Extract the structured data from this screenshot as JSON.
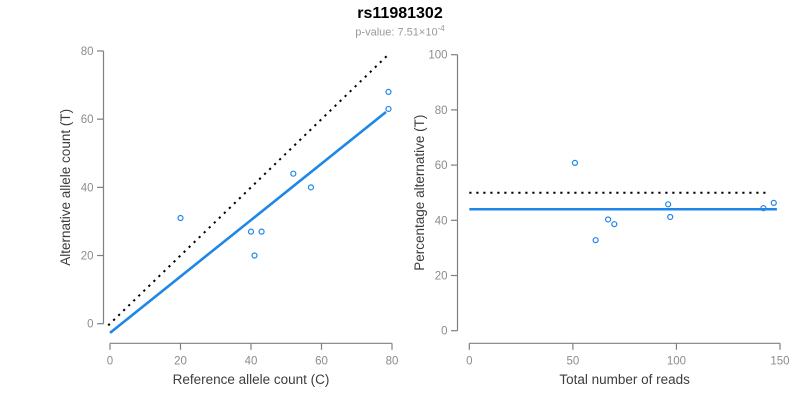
{
  "header": {
    "title": "rs11981302",
    "pvalue_prefix": "p-value: 7.51×10",
    "pvalue_exponent": "-4"
  },
  "colors": {
    "point": "#1e87e8",
    "fit_line": "#1e87e8",
    "dotted_line": "#000000",
    "axis": "#808080",
    "tick_label": "#8c8c8c",
    "axis_title": "#3d3d3d",
    "title": "#000000",
    "subtitle": "#999999"
  },
  "chart_data": [
    {
      "type": "scatter",
      "panel": "allele-counts",
      "xlabel": "Reference allele count (C)",
      "ylabel": "Alternative allele count (T)",
      "xlim": [
        0,
        80
      ],
      "ylim": [
        0,
        80
      ],
      "xticks": [
        0,
        20,
        40,
        60,
        80
      ],
      "yticks": [
        0,
        20,
        40,
        60,
        80
      ],
      "grid": false,
      "legend": "none",
      "points": {
        "x": [
          20,
          40,
          43,
          41,
          52,
          57,
          79,
          79
        ],
        "y": [
          31,
          27,
          27,
          20,
          44,
          40,
          68,
          63
        ]
      },
      "lines": [
        {
          "name": "fit-line",
          "style": "solid",
          "color": "#1e87e8",
          "x1": 0,
          "y1": -2.7,
          "x2": 78.3,
          "y2": 62.1
        },
        {
          "name": "identity-line",
          "style": "dotted",
          "color": "#000000",
          "x1": -0.5,
          "y1": -0.5,
          "x2": 78.5,
          "y2": 78.5
        }
      ]
    },
    {
      "type": "scatter",
      "panel": "percentage-alternative",
      "xlabel": "Total number of reads",
      "ylabel": "Percentage alternative (T)",
      "xlim": [
        0,
        150
      ],
      "ylim": [
        0,
        100
      ],
      "xticks": [
        0,
        50,
        100,
        150
      ],
      "yticks": [
        0,
        20,
        40,
        60,
        80,
        100
      ],
      "grid": false,
      "legend": "none",
      "points": {
        "x": [
          51,
          67,
          70,
          61,
          96,
          97,
          147,
          142
        ],
        "y": [
          60.8,
          40.3,
          38.6,
          32.8,
          45.8,
          41.2,
          46.3,
          44.4
        ]
      },
      "lines": [
        {
          "name": "mean-percentage-line",
          "style": "solid",
          "color": "#1e87e8",
          "x1": 0,
          "y1": 44,
          "x2": 148.5,
          "y2": 44
        },
        {
          "name": "fifty-percent-line",
          "style": "dotted",
          "color": "#000000",
          "x1": 0,
          "y1": 50,
          "x2": 145,
          "y2": 50
        }
      ]
    }
  ]
}
